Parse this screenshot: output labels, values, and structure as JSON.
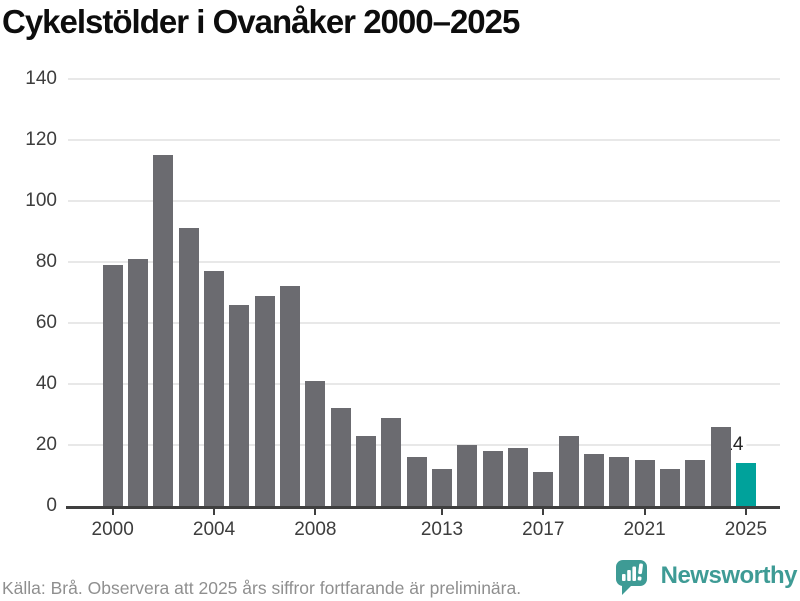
{
  "chart_data": {
    "type": "bar",
    "title": "Cykelstölder i Ovanåker 2000–2025",
    "years": [
      2000,
      2001,
      2002,
      2003,
      2004,
      2005,
      2006,
      2007,
      2008,
      2009,
      2010,
      2011,
      2012,
      2013,
      2014,
      2015,
      2016,
      2017,
      2018,
      2019,
      2020,
      2021,
      2022,
      2023,
      2024,
      2025
    ],
    "values": [
      79,
      81,
      115,
      91,
      77,
      66,
      69,
      72,
      41,
      32,
      23,
      29,
      16,
      12,
      20,
      18,
      19,
      11,
      23,
      17,
      16,
      15,
      12,
      15,
      26,
      14
    ],
    "highlight_year": 2025,
    "highlight_label": "14",
    "x_tick_years": [
      2000,
      2004,
      2008,
      2013,
      2017,
      2021,
      2025
    ],
    "x_tick_labels": [
      "2000",
      "2004",
      "2008",
      "2013",
      "2017",
      "2021",
      "2025"
    ],
    "y_ticks": [
      0,
      20,
      40,
      60,
      80,
      100,
      120,
      140
    ],
    "ylim": [
      0,
      140
    ],
    "xlabel": "",
    "ylabel": "",
    "grid": "horizontal",
    "legend_position": "none"
  },
  "footer": {
    "source_note": "Källa: Brå. Observera att 2025 års siffror fortfarande är preliminära."
  },
  "branding": {
    "logo_text": "Newsworthy",
    "logo_icon": "newsworthy-chart-bubble-icon"
  },
  "colors": {
    "bar": "#6b6b70",
    "highlight": "#00a29b",
    "brand": "#3e9b95",
    "grid": "#e8e8e8",
    "axis": "#3f3f3f",
    "tick_label": "#3d3d3d",
    "title_text": "#0d0d0d",
    "muted_text": "#8f8f8f"
  }
}
